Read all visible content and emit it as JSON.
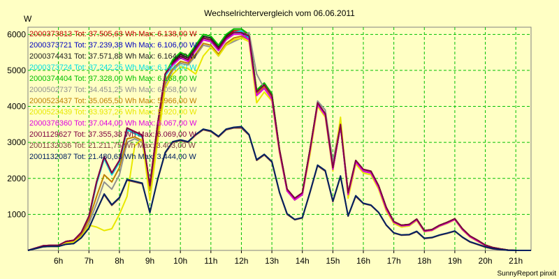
{
  "chart_data": {
    "type": "line",
    "title": "Wechselrichtervergleich vom 06.06.2011",
    "ylabel": "W",
    "xlabel": "",
    "footer": "SunnyReport pinxit",
    "grid": true,
    "legend_position": "top-left",
    "xlim": [
      5.0,
      21.5
    ],
    "ylim": [
      0,
      6200
    ],
    "x_ticks": [
      6,
      7,
      8,
      9,
      10,
      11,
      12,
      13,
      14,
      15,
      16,
      17,
      18,
      19,
      20,
      21
    ],
    "x_tick_labels": [
      "6h",
      "7h",
      "8h",
      "9h",
      "10h",
      "11h",
      "12h",
      "13h",
      "14h",
      "15h",
      "16h",
      "17h",
      "18h",
      "19h",
      "20h",
      "21h"
    ],
    "y_ticks": [
      1000,
      2000,
      3000,
      4000,
      5000,
      6000
    ],
    "y_tick_labels": [
      "1000",
      "2000",
      "3000",
      "4000",
      "5000",
      "6000"
    ],
    "x": [
      5.0,
      5.5,
      5.75,
      6.0,
      6.25,
      6.5,
      6.75,
      7.0,
      7.25,
      7.5,
      7.75,
      8.0,
      8.25,
      8.5,
      8.75,
      9.0,
      9.25,
      9.5,
      9.75,
      10.0,
      10.25,
      10.5,
      10.75,
      11.0,
      11.25,
      11.5,
      11.75,
      12.0,
      12.25,
      12.5,
      12.75,
      13.0,
      13.25,
      13.5,
      13.75,
      14.0,
      14.25,
      14.5,
      14.75,
      15.0,
      15.25,
      15.5,
      15.75,
      16.0,
      16.25,
      16.5,
      16.75,
      17.0,
      17.25,
      17.5,
      17.75,
      18.0,
      18.25,
      18.5,
      18.75,
      19.0,
      19.25,
      19.5,
      19.75,
      20.0,
      20.25,
      20.5,
      20.75,
      21.0,
      21.25,
      21.5
    ],
    "series": [
      {
        "name": "2000373813 Tot: 37.505,63 Wh Max: 6.138,00 W",
        "color": "#c00000",
        "values": [
          0,
          130,
          140,
          140,
          250,
          280,
          500,
          950,
          1900,
          2600,
          2150,
          2500,
          3400,
          3300,
          3200,
          1800,
          3500,
          4900,
          5200,
          5400,
          5300,
          5600,
          5900,
          5850,
          5600,
          5900,
          6100,
          6100,
          5950,
          4400,
          4600,
          4300,
          2800,
          1700,
          1450,
          1600,
          2800,
          4100,
          3800,
          2300,
          3500,
          1600,
          2500,
          2250,
          2200,
          1800,
          1200,
          800,
          700,
          720,
          870,
          550,
          580,
          700,
          780,
          880,
          600,
          400,
          280,
          150,
          80,
          40,
          10,
          0,
          0,
          0
        ]
      },
      {
        "name": "2000373721 Tot: 37.239,38 Wh Max: 6.106,00 W",
        "color": "#0000c0",
        "values": [
          0,
          120,
          130,
          130,
          240,
          270,
          480,
          920,
          1850,
          2550,
          2100,
          2450,
          3350,
          3250,
          3150,
          1750,
          3450,
          4850,
          5150,
          5350,
          5250,
          5550,
          5850,
          5800,
          5550,
          5850,
          6050,
          6050,
          5900,
          4350,
          4550,
          4250,
          2750,
          1650,
          1400,
          1550,
          2750,
          4050,
          3750,
          2250,
          3450,
          1550,
          2450,
          2200,
          2150,
          1750,
          1150,
          780,
          680,
          700,
          850,
          530,
          560,
          680,
          760,
          860,
          580,
          380,
          260,
          140,
          70,
          30,
          5,
          0,
          0,
          0
        ]
      },
      {
        "name": "2000374431 Tot: 37.571,88 Wh Max: 6.164,00 W",
        "color": "#202020",
        "values": [
          0,
          130,
          140,
          140,
          250,
          280,
          500,
          950,
          1900,
          2600,
          2150,
          2500,
          3400,
          3300,
          3200,
          1800,
          3500,
          4900,
          5250,
          5450,
          5350,
          5650,
          5950,
          5900,
          5650,
          5950,
          6150,
          6150,
          6000,
          4450,
          4650,
          4350,
          2800,
          1700,
          1450,
          1600,
          2800,
          4100,
          3800,
          2300,
          3500,
          1600,
          2500,
          2250,
          2200,
          1800,
          1200,
          800,
          700,
          720,
          870,
          550,
          580,
          700,
          780,
          880,
          600,
          400,
          280,
          150,
          80,
          40,
          10,
          0,
          0,
          0
        ]
      },
      {
        "name": "2000373724 Tot: 37.242,25 Wh Max: 6.144,00 W",
        "color": "#00e0e0",
        "values": [
          0,
          120,
          130,
          130,
          240,
          270,
          480,
          920,
          1850,
          2550,
          2100,
          2450,
          3350,
          3250,
          3150,
          1750,
          3450,
          4850,
          5150,
          5350,
          5250,
          5550,
          5850,
          5800,
          5550,
          5850,
          6050,
          6100,
          5900,
          4350,
          4550,
          4250,
          2750,
          1650,
          1400,
          1550,
          2750,
          4050,
          3750,
          2250,
          3450,
          1550,
          2450,
          2200,
          2150,
          1750,
          1150,
          780,
          680,
          700,
          850,
          530,
          560,
          680,
          760,
          860,
          580,
          380,
          260,
          140,
          70,
          30,
          5,
          0,
          0,
          0
        ]
      },
      {
        "name": "2000374404 Tot: 37.328,00 Wh Max: 6.168,00 W",
        "color": "#00c000",
        "values": [
          0,
          130,
          140,
          140,
          250,
          280,
          500,
          950,
          1900,
          2600,
          2150,
          2500,
          3400,
          3300,
          3200,
          1800,
          3500,
          4900,
          5300,
          5500,
          5400,
          5700,
          6000,
          5950,
          5700,
          6000,
          6150,
          6150,
          6000,
          4450,
          4650,
          4350,
          2800,
          1700,
          1450,
          1600,
          2800,
          4100,
          3800,
          2300,
          3500,
          1600,
          2500,
          2250,
          2200,
          1800,
          1200,
          800,
          700,
          720,
          870,
          550,
          580,
          700,
          780,
          880,
          600,
          400,
          280,
          150,
          80,
          40,
          10,
          0,
          0,
          0
        ]
      },
      {
        "name": "2000502737 Tot: 34.451,25 Wh Max: 6.058,00 W",
        "color": "#909090",
        "values": [
          0,
          100,
          110,
          110,
          200,
          230,
          400,
          750,
          1300,
          1900,
          1700,
          2100,
          3000,
          3100,
          3000,
          1700,
          3200,
          4600,
          5000,
          5200,
          5150,
          5400,
          5700,
          5650,
          5400,
          5700,
          5800,
          5900,
          6050,
          4900,
          4500,
          4200,
          2700,
          1650,
          1400,
          1550,
          2700,
          4150,
          3900,
          2450,
          3600,
          1600,
          2500,
          2200,
          2150,
          1750,
          1150,
          750,
          650,
          680,
          830,
          520,
          550,
          670,
          750,
          850,
          570,
          370,
          250,
          130,
          60,
          25,
          5,
          0,
          0,
          0
        ]
      },
      {
        "name": "2000523437 Tot: 35.065,50 Wh Max: 5.966,00 W",
        "color": "#c08000",
        "values": [
          0,
          110,
          120,
          120,
          220,
          250,
          450,
          850,
          1500,
          2100,
          1900,
          2300,
          3100,
          3150,
          3050,
          1700,
          3300,
          4700,
          5050,
          5250,
          5200,
          5450,
          5750,
          5700,
          5450,
          5750,
          5900,
          5950,
          5850,
          4350,
          4550,
          4250,
          2750,
          1650,
          1400,
          1550,
          2750,
          4050,
          3750,
          2250,
          3450,
          1550,
          2450,
          2200,
          2150,
          1750,
          1150,
          780,
          680,
          700,
          850,
          530,
          560,
          680,
          760,
          860,
          580,
          380,
          260,
          140,
          70,
          30,
          5,
          0,
          0,
          0
        ]
      },
      {
        "name": "2000523439 Tot: 33.937,25 Wh Max: 5.920,00 W",
        "color": "#e8e800",
        "values": [
          0,
          100,
          110,
          110,
          200,
          230,
          380,
          700,
          650,
          550,
          600,
          1000,
          1500,
          2900,
          3100,
          1400,
          3000,
          4500,
          4900,
          5100,
          5050,
          4900,
          5400,
          5650,
          5400,
          5700,
          5850,
          5900,
          5800,
          4100,
          4400,
          4150,
          2700,
          1650,
          1400,
          1550,
          2650,
          4000,
          3700,
          2200,
          3700,
          1450,
          2400,
          2150,
          2100,
          1700,
          1100,
          750,
          650,
          680,
          830,
          520,
          550,
          670,
          750,
          850,
          570,
          370,
          250,
          130,
          60,
          25,
          5,
          0,
          0,
          0
        ]
      },
      {
        "name": "2000376360 Tot: 37.044,00 Wh Max: 6.067,00 W",
        "color": "#e000e0",
        "values": [
          0,
          130,
          140,
          140,
          250,
          280,
          500,
          950,
          1900,
          2600,
          2150,
          2500,
          3400,
          3300,
          3200,
          1800,
          3500,
          4900,
          5150,
          5350,
          5250,
          5550,
          5850,
          5800,
          5550,
          5850,
          6000,
          6000,
          5850,
          4300,
          4500,
          4200,
          2750,
          1650,
          1400,
          1550,
          2750,
          4050,
          3750,
          2250,
          3450,
          1550,
          2450,
          2200,
          2150,
          1750,
          1150,
          780,
          680,
          700,
          850,
          530,
          560,
          680,
          760,
          860,
          580,
          380,
          260,
          140,
          70,
          30,
          5,
          0,
          0,
          0
        ]
      },
      {
        "name": "2001129627 Tot: 37.355,38 Wh Max: 6.069,00 W",
        "color": "#800040",
        "values": [
          0,
          130,
          140,
          140,
          250,
          280,
          500,
          950,
          1900,
          2600,
          2150,
          2500,
          3400,
          3300,
          3200,
          1800,
          3500,
          4900,
          5200,
          5400,
          5300,
          5600,
          5900,
          5850,
          5600,
          5900,
          6050,
          6050,
          5950,
          4400,
          4600,
          4300,
          2800,
          1700,
          1450,
          1600,
          2800,
          4100,
          3800,
          2300,
          3500,
          1600,
          2500,
          2250,
          2200,
          1800,
          1200,
          800,
          700,
          720,
          870,
          550,
          580,
          700,
          780,
          880,
          600,
          400,
          280,
          150,
          80,
          40,
          10,
          0,
          0,
          0
        ]
      },
      {
        "name": "2001132036 Tot: 21.211,75 Wh Max: 3.403,00 W",
        "color": "#804040",
        "values": [
          0,
          100,
          110,
          110,
          170,
          190,
          350,
          620,
          1100,
          1550,
          1250,
          1450,
          1950,
          1900,
          1850,
          1050,
          1950,
          2700,
          3000,
          3050,
          3000,
          3200,
          3350,
          3300,
          3150,
          3350,
          3400,
          3400,
          3200,
          2500,
          2650,
          2450,
          1600,
          1000,
          850,
          900,
          1600,
          2350,
          2200,
          1350,
          2050,
          950,
          1500,
          1300,
          1250,
          1050,
          700,
          480,
          420,
          430,
          520,
          330,
          350,
          420,
          470,
          530,
          360,
          230,
          160,
          90,
          40,
          20,
          5,
          0,
          0,
          0
        ]
      },
      {
        "name": "2001132087 Tot: 21.480,63 Wh Max: 3.444,00 W",
        "color": "#002060",
        "values": [
          0,
          100,
          110,
          110,
          170,
          190,
          350,
          620,
          1100,
          1570,
          1270,
          1470,
          1970,
          1920,
          1870,
          1050,
          1970,
          2720,
          3020,
          3070,
          3020,
          3220,
          3370,
          3320,
          3170,
          3370,
          3420,
          3440,
          3220,
          2520,
          2670,
          2470,
          1620,
          1020,
          860,
          910,
          1620,
          2370,
          2220,
          1370,
          2070,
          960,
          1520,
          1310,
          1260,
          1060,
          710,
          490,
          430,
          440,
          530,
          340,
          360,
          430,
          480,
          540,
          370,
          240,
          170,
          100,
          50,
          25,
          5,
          0,
          0,
          0
        ]
      }
    ]
  }
}
